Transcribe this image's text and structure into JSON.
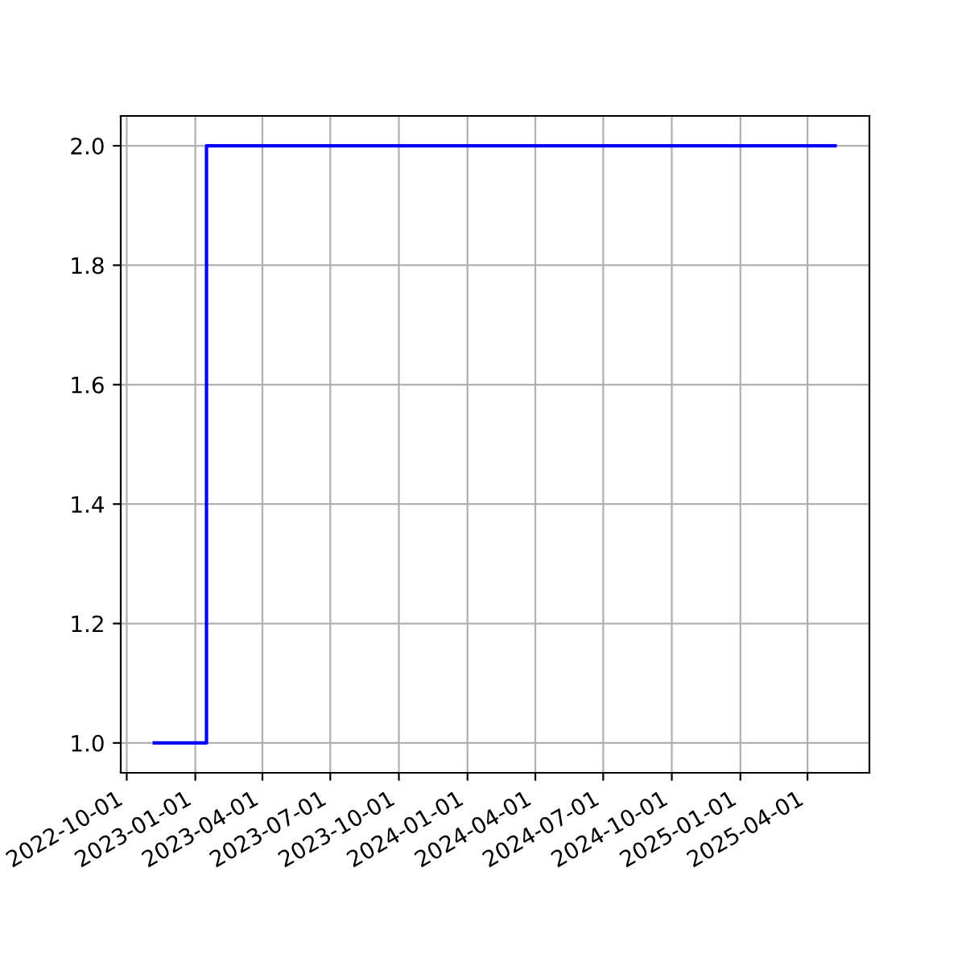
{
  "chart_data": {
    "type": "step",
    "x": [
      "2022-11-07",
      "2023-01-16",
      "2025-05-08"
    ],
    "series": [
      {
        "color": "#0000ff",
        "values": [
          1,
          2,
          2
        ]
      }
    ],
    "xlim": [
      "2022-09-23",
      "2025-06-23"
    ],
    "xticks": [
      "2022-10-01",
      "2023-01-01",
      "2023-04-01",
      "2023-07-01",
      "2023-10-01",
      "2024-01-01",
      "2024-04-01",
      "2024-07-01",
      "2024-10-01",
      "2025-01-01",
      "2025-04-01"
    ],
    "ylim": [
      0.95,
      2.05
    ],
    "yticks": [
      {
        "value": 1,
        "label": "1.0"
      },
      {
        "value": 1.2,
        "label": "1.2"
      },
      {
        "value": 1.4,
        "label": "1.4"
      },
      {
        "value": 1.6,
        "label": "1.6"
      },
      {
        "value": 1.8,
        "label": "1.8"
      },
      {
        "value": 2,
        "label": "2.0"
      }
    ],
    "grid": true
  }
}
